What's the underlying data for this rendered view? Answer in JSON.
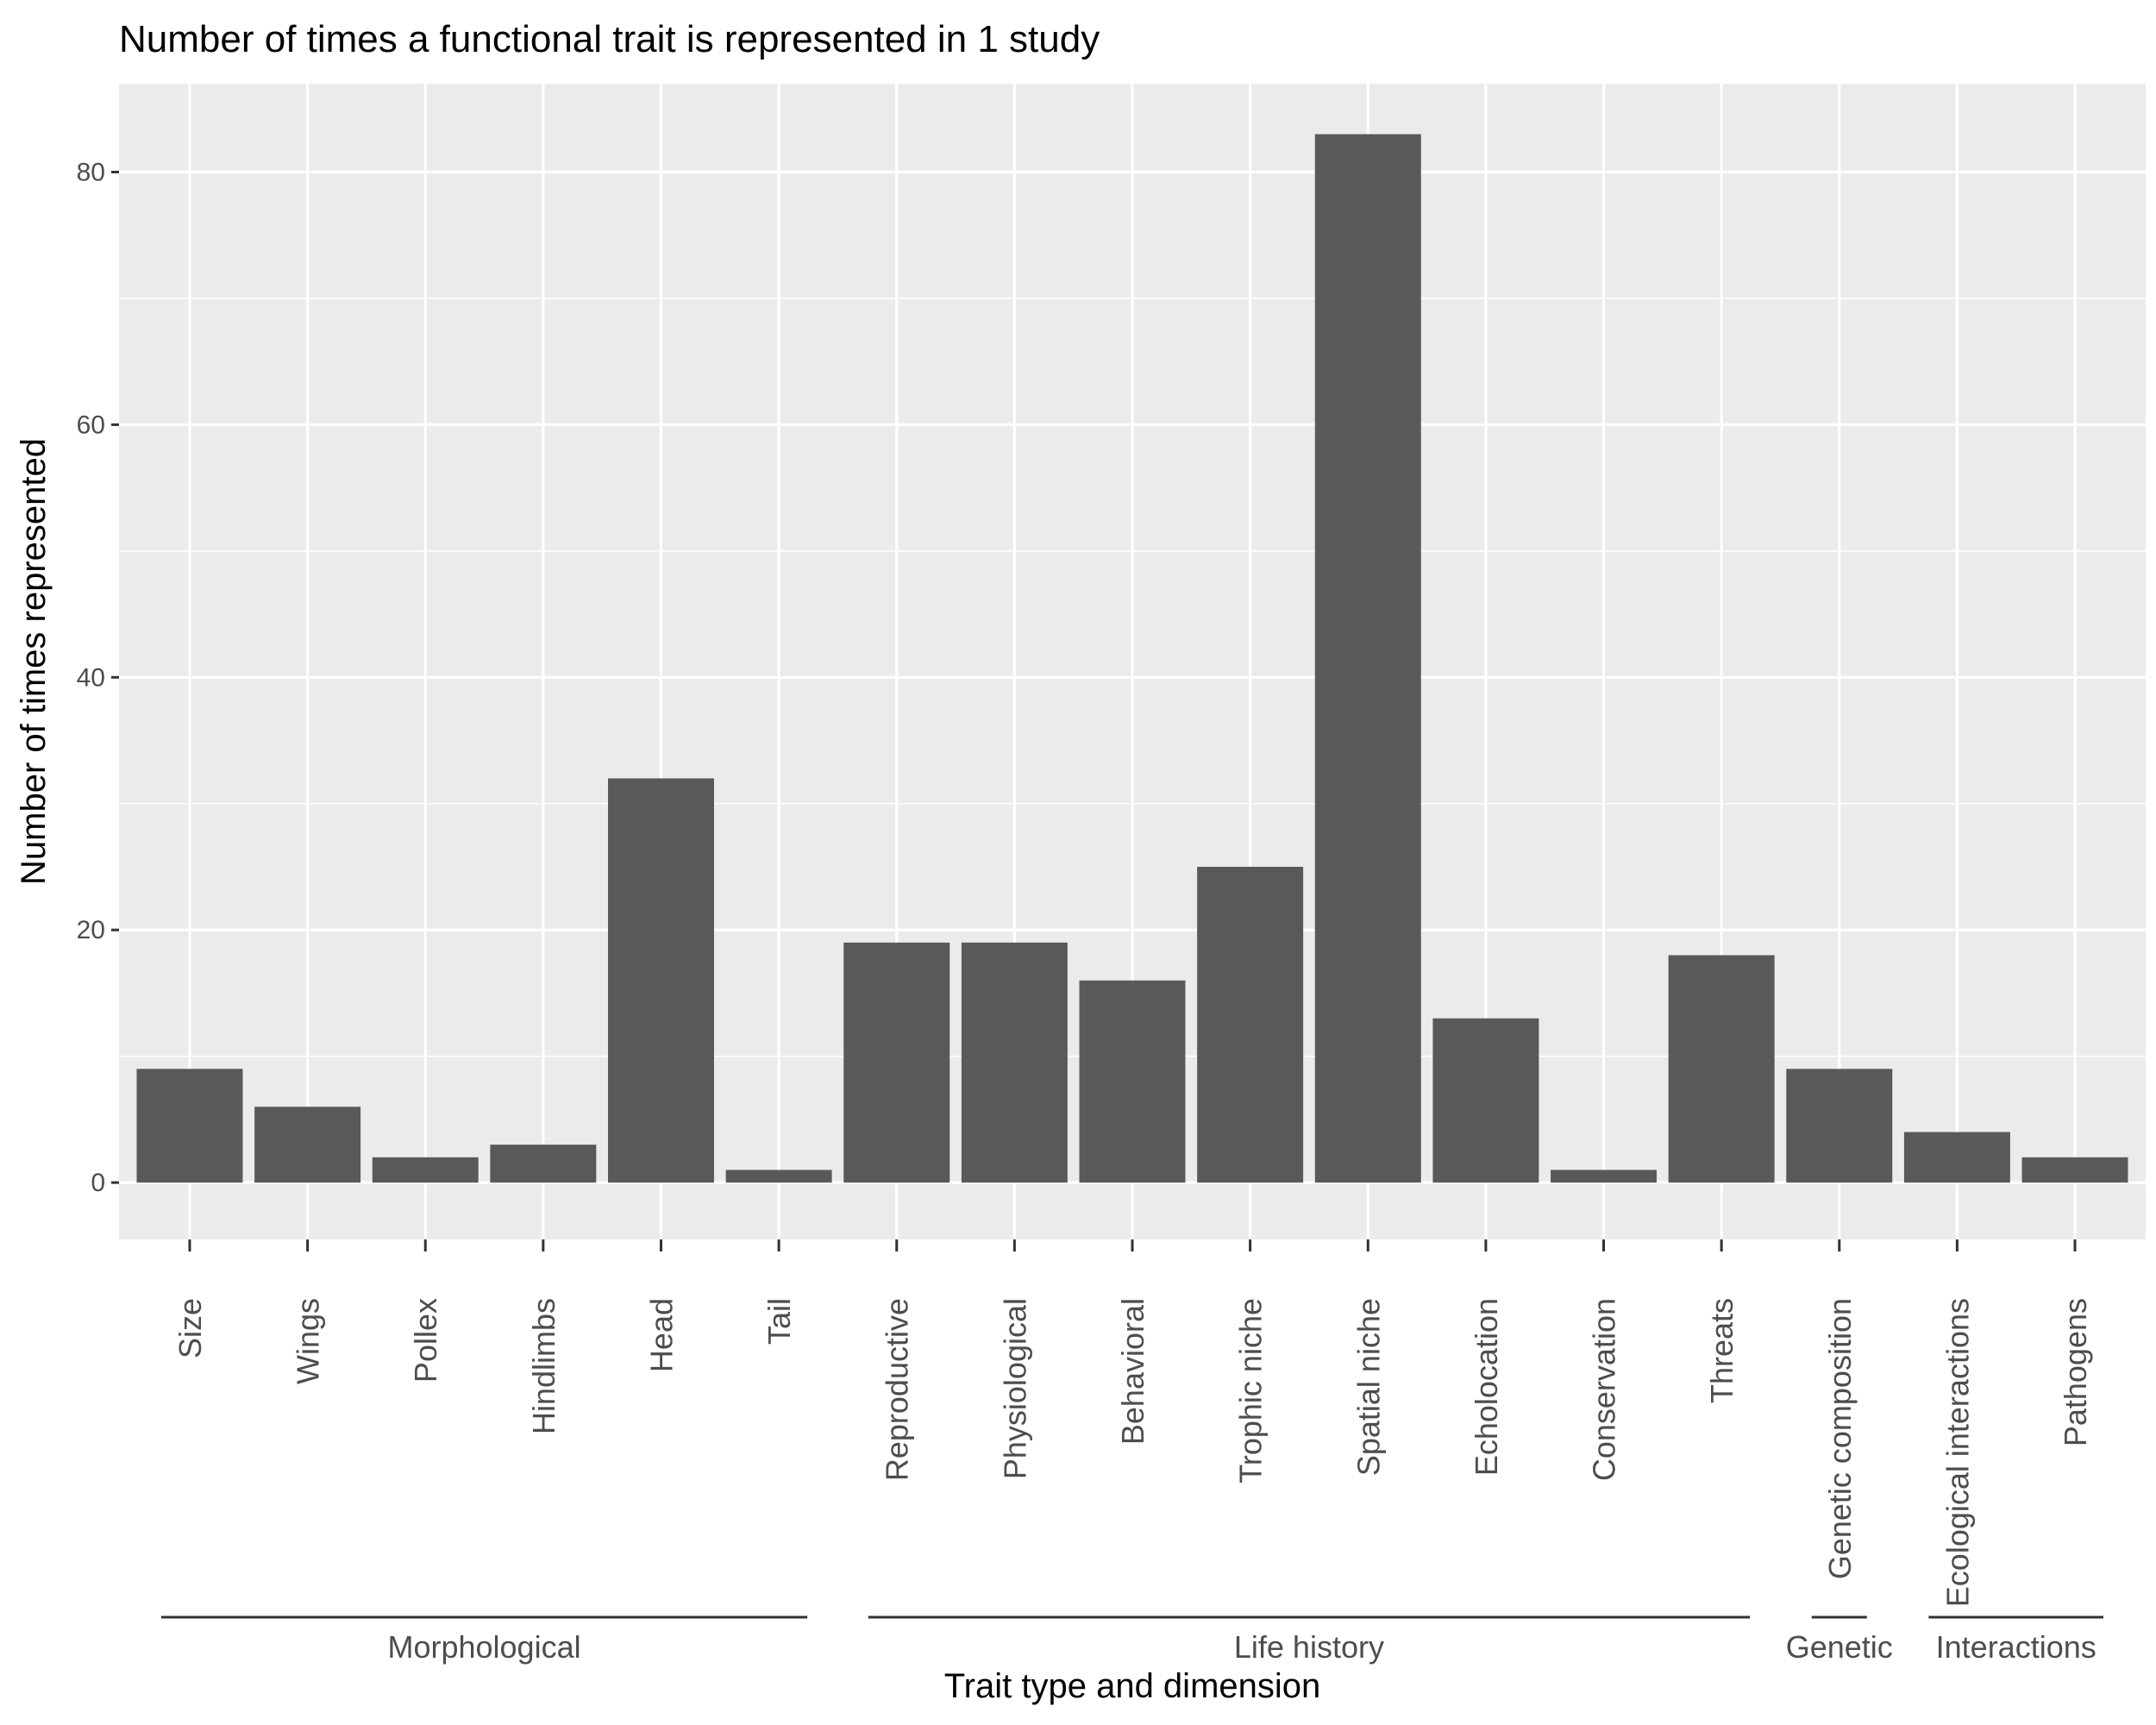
{
  "chart_data": {
    "type": "bar",
    "title": "Number of times a functional trait is represented in 1 study",
    "xlabel": "Trait type and dimension",
    "ylabel": "Number of times represented",
    "ylim": [
      -4.5,
      87
    ],
    "yticks": [
      0,
      20,
      40,
      60,
      80
    ],
    "grid": true,
    "categories": [
      "Size",
      "Wings",
      "Pollex",
      "Hindlimbs",
      "Head",
      "Tail",
      "Reproductive",
      "Physiological",
      "Behavioral",
      "Trophic niche",
      "Spatial niche",
      "Echolocation",
      "Conservation",
      "Threats",
      "Genetic composition",
      "Ecological interactions",
      "Pathogens"
    ],
    "values": [
      9,
      6,
      2,
      3,
      32,
      1,
      19,
      19,
      16,
      25,
      83,
      13,
      1,
      18,
      9,
      4,
      2
    ],
    "groups": [
      {
        "label": "Morphological",
        "categories": [
          "Size",
          "Wings",
          "Pollex",
          "Hindlimbs",
          "Head",
          "Tail"
        ]
      },
      {
        "label": "Life history",
        "categories": [
          "Reproductive",
          "Physiological",
          "Behavioral",
          "Trophic niche",
          "Spatial niche",
          "Echolocation",
          "Conservation",
          "Threats"
        ]
      },
      {
        "label": "Genetic",
        "categories": [
          "Genetic composition"
        ]
      },
      {
        "label": "Interactions",
        "categories": [
          "Ecological interactions",
          "Pathogens"
        ]
      }
    ],
    "colors": {
      "bar": "#595959",
      "panel": "#ebebeb",
      "grid": "#ffffff",
      "tick_text": "#4d4d4d",
      "bracket": "#333333"
    }
  }
}
